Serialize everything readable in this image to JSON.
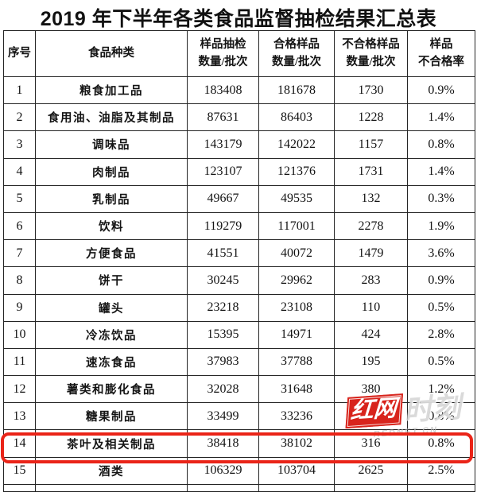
{
  "page": {
    "title": "2019 年下半年各类食品监督抽检结果汇总表"
  },
  "table": {
    "headers": [
      "序号",
      "食品种类",
      "样品抽检\n数量/批次",
      "合格样品\n数量/批次",
      "不合格样品\n数量/批次",
      "样品\n不合格率"
    ],
    "rows": [
      {
        "no": "1",
        "category": "粮食加工品",
        "sampled": "183408",
        "qualified": "181678",
        "unqualified": "1730",
        "rate": "0.9%"
      },
      {
        "no": "2",
        "category": "食用油、油脂及其制品",
        "sampled": "87631",
        "qualified": "86403",
        "unqualified": "1228",
        "rate": "1.4%"
      },
      {
        "no": "3",
        "category": "调味品",
        "sampled": "143179",
        "qualified": "142022",
        "unqualified": "1157",
        "rate": "0.8%"
      },
      {
        "no": "4",
        "category": "肉制品",
        "sampled": "123107",
        "qualified": "121376",
        "unqualified": "1731",
        "rate": "1.4%"
      },
      {
        "no": "5",
        "category": "乳制品",
        "sampled": "49667",
        "qualified": "49535",
        "unqualified": "132",
        "rate": "0.3%"
      },
      {
        "no": "6",
        "category": "饮料",
        "sampled": "119279",
        "qualified": "117001",
        "unqualified": "2278",
        "rate": "1.9%"
      },
      {
        "no": "7",
        "category": "方便食品",
        "sampled": "41551",
        "qualified": "40072",
        "unqualified": "1479",
        "rate": "3.6%"
      },
      {
        "no": "8",
        "category": "饼干",
        "sampled": "30245",
        "qualified": "29962",
        "unqualified": "283",
        "rate": "0.9%"
      },
      {
        "no": "9",
        "category": "罐头",
        "sampled": "23218",
        "qualified": "23108",
        "unqualified": "110",
        "rate": "0.5%"
      },
      {
        "no": "10",
        "category": "冷冻饮品",
        "sampled": "15395",
        "qualified": "14971",
        "unqualified": "424",
        "rate": "2.8%"
      },
      {
        "no": "11",
        "category": "速冻食品",
        "sampled": "37983",
        "qualified": "37788",
        "unqualified": "195",
        "rate": "0.5%"
      },
      {
        "no": "12",
        "category": "薯类和膨化食品",
        "sampled": "32028",
        "qualified": "31648",
        "unqualified": "380",
        "rate": "1.2%"
      },
      {
        "no": "13",
        "category": "糖果制品",
        "sampled": "33499",
        "qualified": "33236",
        "unqualified": "263",
        "rate": "0.8%"
      },
      {
        "no": "14",
        "category": "茶叶及相关制品",
        "sampled": "38418",
        "qualified": "38102",
        "unqualified": "316",
        "rate": "0.8%"
      },
      {
        "no": "15",
        "category": "酒类",
        "sampled": "106329",
        "qualified": "103704",
        "unqualified": "2625",
        "rate": "2.5%"
      }
    ],
    "highlighted_row_no": "14"
  },
  "watermark": {
    "brand": "红网",
    "suffix": "时刻",
    "domain": "REDNET.CN"
  },
  "colors": {
    "highlight_border": "#ea2418",
    "watermark_red": "#d8241c",
    "table_border": "#242424",
    "text": "#141414"
  }
}
